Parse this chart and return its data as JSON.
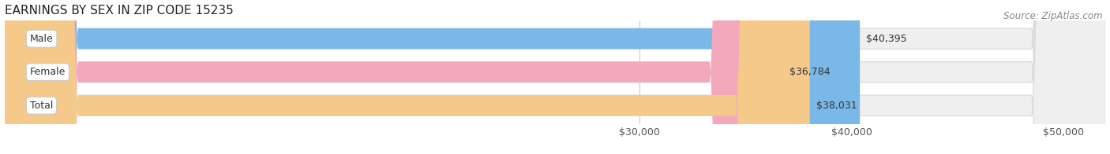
{
  "title": "EARNINGS BY SEX IN ZIP CODE 15235",
  "source": "Source: ZipAtlas.com",
  "categories": [
    "Male",
    "Female",
    "Total"
  ],
  "values": [
    40395,
    36784,
    38031
  ],
  "bar_colors": [
    "#7ab8e8",
    "#f4a8bc",
    "#f5c98a"
  ],
  "bar_bg_color": "#efefef",
  "x_min": 0,
  "x_max": 52000,
  "x_ticks": [
    30000,
    40000,
    50000
  ],
  "x_tick_labels": [
    "$30,000",
    "$40,000",
    "$50,000"
  ],
  "title_fontsize": 11,
  "source_fontsize": 8.5,
  "bar_label_fontsize": 9,
  "category_fontsize": 9,
  "tick_fontsize": 9,
  "bar_height": 0.62,
  "bar_gap": 0.18,
  "background_color": "#ffffff"
}
